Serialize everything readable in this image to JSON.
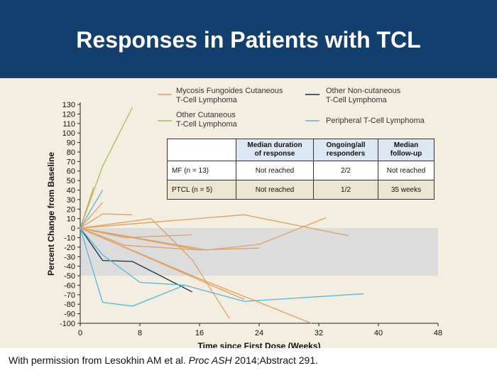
{
  "header": {
    "title": "Responses in Patients with TCL"
  },
  "footnote": {
    "prefix": "With permission from Lesokhin AM et al. ",
    "journal": "Proc ASH",
    "suffix": " 2014;Abstract 291."
  },
  "colors": {
    "mycosis_fungoides": "#e0a060",
    "other_cutaneous": "#9dc05a",
    "other_noncutaneous": "#1b2a44",
    "peripheral_tcl": "#55b6de",
    "response_band": "#dcdcdc",
    "header_bg": "#123f6e"
  },
  "table": {
    "headers": [
      "",
      "Median duration\nof response",
      "Ongoing/all\nresponders",
      "Median\nfollow-up"
    ],
    "rows": [
      [
        "MF (n = 13)",
        "Not reached",
        "2/2",
        "Not reached"
      ],
      [
        "PTCL (n = 5)",
        "Not reached",
        "1/2",
        "35 weeks"
      ]
    ]
  },
  "chart_data": {
    "type": "line",
    "title": "",
    "xlabel": "Time since First Dose (Weeks)",
    "ylabel": "Percent Change from Baseline",
    "xlim": [
      0,
      48
    ],
    "ylim": [
      -100,
      130
    ],
    "xticks": [
      0,
      8,
      16,
      24,
      32,
      40,
      48
    ],
    "yticks": [
      130,
      120,
      110,
      100,
      90,
      80,
      70,
      60,
      50,
      40,
      30,
      20,
      10,
      0,
      -10,
      -20,
      -30,
      -40,
      -50,
      -60,
      -70,
      -80,
      -90,
      -100
    ],
    "shaded_band": [
      -50,
      0
    ],
    "legend_position": "top",
    "legend": [
      {
        "key": "mycosis_fungoides",
        "label_line1": "Mycosis Fungoides Cutaneous",
        "label_line2": "T-Cell Lymphoma"
      },
      {
        "key": "other_noncutaneous",
        "label_line1": "Other Non-cutaneous",
        "label_line2": "T-Cell Lymphoma"
      },
      {
        "key": "other_cutaneous",
        "label_line1": "Other Cutaneous",
        "label_line2": "T-Cell Lymphoma"
      },
      {
        "key": "peripheral_tcl",
        "label_line1": "Peripheral T-Cell Lymphoma",
        "label_line2": ""
      }
    ],
    "series": [
      {
        "group": "other_cutaneous",
        "points": [
          [
            0,
            0
          ],
          [
            3,
            65
          ],
          [
            7,
            127
          ]
        ]
      },
      {
        "group": "mycosis_fungoides",
        "points": [
          [
            0,
            0
          ],
          [
            1.8,
            43
          ]
        ]
      },
      {
        "group": "mycosis_fungoides",
        "points": [
          [
            0,
            0
          ],
          [
            3,
            15
          ],
          [
            7,
            14
          ]
        ]
      },
      {
        "group": "mycosis_fungoides",
        "points": [
          [
            0,
            0
          ],
          [
            3,
            27
          ]
        ]
      },
      {
        "group": "mycosis_fungoides",
        "points": [
          [
            0,
            0
          ],
          [
            9.5,
            10
          ],
          [
            15,
            -33
          ],
          [
            20,
            -95
          ]
        ]
      },
      {
        "group": "mycosis_fungoides",
        "points": [
          [
            0,
            0
          ],
          [
            6,
            -10
          ],
          [
            15,
            -7
          ]
        ]
      },
      {
        "group": "mycosis_fungoides",
        "points": [
          [
            0,
            0
          ],
          [
            22,
            14
          ],
          [
            36,
            -8
          ]
        ]
      },
      {
        "group": "mycosis_fungoides",
        "points": [
          [
            0,
            0
          ],
          [
            17,
            -23
          ],
          [
            24,
            -17
          ],
          [
            33,
            11
          ]
        ]
      },
      {
        "group": "mycosis_fungoides",
        "points": [
          [
            0,
            0
          ],
          [
            16,
            -23
          ],
          [
            24,
            -21
          ]
        ]
      },
      {
        "group": "mycosis_fungoides",
        "points": [
          [
            0,
            0
          ],
          [
            15,
            -50
          ],
          [
            31,
            -100
          ]
        ]
      },
      {
        "group": "mycosis_fungoides",
        "points": [
          [
            0,
            0
          ],
          [
            6,
            -18
          ],
          [
            16,
            -23
          ]
        ]
      },
      {
        "group": "mycosis_fungoides",
        "points": [
          [
            0,
            0
          ],
          [
            22,
            -75
          ]
        ]
      },
      {
        "group": "other_noncutaneous",
        "points": [
          [
            0,
            0
          ],
          [
            3,
            -34
          ],
          [
            7,
            -35
          ],
          [
            15,
            -67
          ]
        ]
      },
      {
        "group": "peripheral_tcl",
        "points": [
          [
            0,
            0
          ],
          [
            3,
            40
          ]
        ]
      },
      {
        "group": "peripheral_tcl",
        "points": [
          [
            0,
            0
          ],
          [
            3,
            -78
          ],
          [
            7,
            -82
          ],
          [
            14,
            -60
          ]
        ]
      },
      {
        "group": "peripheral_tcl",
        "points": [
          [
            0,
            0
          ],
          [
            3,
            -28
          ],
          [
            8,
            -57
          ],
          [
            14,
            -60
          ],
          [
            22,
            -77
          ],
          [
            38,
            -69
          ]
        ]
      }
    ]
  }
}
